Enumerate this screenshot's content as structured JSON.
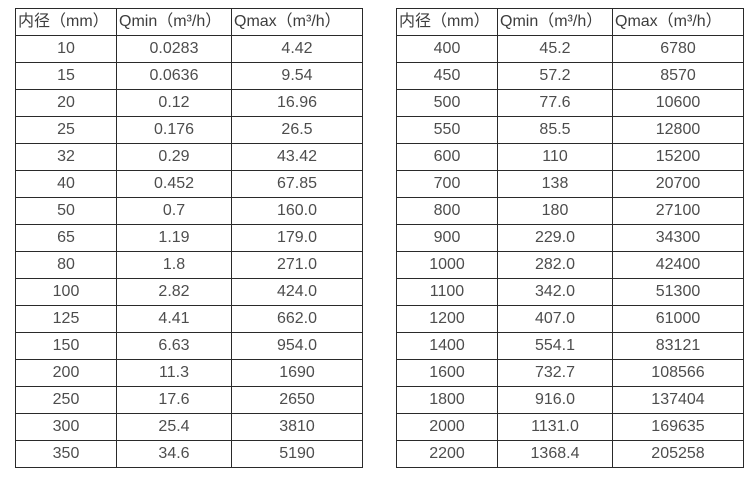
{
  "page": {
    "background": "#ffffff",
    "border_color": "#2a2a2a",
    "header_text_color": "#3d3d3d",
    "cell_text_color": "#4d4d4d"
  },
  "tables": [
    {
      "name": "flow-table-small-diameters",
      "headers": [
        "内径（mm）",
        "Qmin（m³/h）",
        "Qmax（m³/h）"
      ],
      "rows": [
        [
          "10",
          "0.0283",
          "4.42"
        ],
        [
          "15",
          "0.0636",
          "9.54"
        ],
        [
          "20",
          "0.12",
          "16.96"
        ],
        [
          "25",
          "0.176",
          "26.5"
        ],
        [
          "32",
          "0.29",
          "43.42"
        ],
        [
          "40",
          "0.452",
          "67.85"
        ],
        [
          "50",
          "0.7",
          "160.0"
        ],
        [
          "65",
          "1.19",
          "179.0"
        ],
        [
          "80",
          "1.8",
          "271.0"
        ],
        [
          "100",
          "2.82",
          "424.0"
        ],
        [
          "125",
          "4.41",
          "662.0"
        ],
        [
          "150",
          "6.63",
          "954.0"
        ],
        [
          "200",
          "11.3",
          "1690"
        ],
        [
          "250",
          "17.6",
          "2650"
        ],
        [
          "300",
          "25.4",
          "3810"
        ],
        [
          "350",
          "34.6",
          "5190"
        ]
      ]
    },
    {
      "name": "flow-table-large-diameters",
      "headers": [
        "内径（mm）",
        "Qmin（m³/h）",
        "Qmax（m³/h）"
      ],
      "rows": [
        [
          "400",
          "45.2",
          "6780"
        ],
        [
          "450",
          "57.2",
          "8570"
        ],
        [
          "500",
          "77.6",
          "10600"
        ],
        [
          "550",
          "85.5",
          "12800"
        ],
        [
          "600",
          "110",
          "15200"
        ],
        [
          "700",
          "138",
          "20700"
        ],
        [
          "800",
          "180",
          "27100"
        ],
        [
          "900",
          "229.0",
          "34300"
        ],
        [
          "1000",
          "282.0",
          "42400"
        ],
        [
          "1100",
          "342.0",
          "51300"
        ],
        [
          "1200",
          "407.0",
          "61000"
        ],
        [
          "1400",
          "554.1",
          "83121"
        ],
        [
          "1600",
          "732.7",
          "108566"
        ],
        [
          "1800",
          "916.0",
          "137404"
        ],
        [
          "2000",
          "1131.0",
          "169635"
        ],
        [
          "2200",
          "1368.4",
          "205258"
        ]
      ]
    }
  ]
}
